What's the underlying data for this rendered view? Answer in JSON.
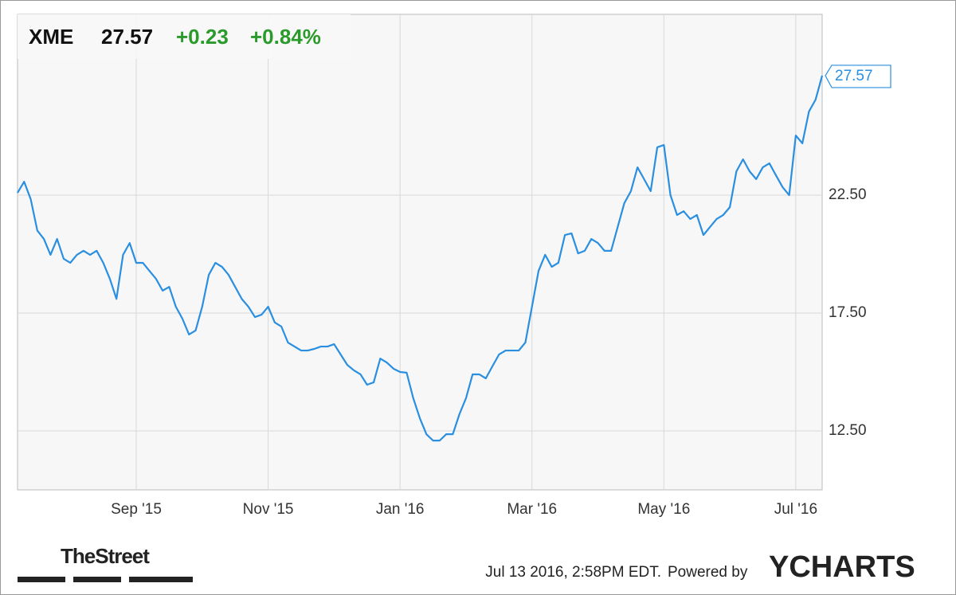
{
  "chart_data": {
    "type": "line",
    "header": {
      "symbol": "XME",
      "price": "27.57",
      "change": "+0.23",
      "change_percent": "+0.84%"
    },
    "categories": [
      null,
      null,
      null,
      null,
      null,
      null,
      null,
      null,
      null,
      null,
      null,
      null,
      null,
      null,
      null,
      null,
      null,
      null,
      "Sep '15",
      null,
      null,
      null,
      null,
      null,
      null,
      null,
      null,
      null,
      null,
      null,
      null,
      null,
      null,
      null,
      null,
      null,
      null,
      null,
      "Nov '15",
      null,
      null,
      null,
      null,
      null,
      null,
      null,
      null,
      null,
      null,
      null,
      null,
      null,
      null,
      null,
      null,
      null,
      null,
      null,
      "Jan '16",
      null,
      null,
      null,
      null,
      null,
      null,
      null,
      null,
      null,
      null,
      null,
      null,
      null,
      null,
      null,
      null,
      null,
      null,
      null,
      "Mar '16",
      null,
      null,
      null,
      null,
      null,
      null,
      null,
      null,
      null,
      null,
      null,
      null,
      null,
      null,
      null,
      null,
      null,
      null,
      null,
      "May '16",
      null,
      null,
      null,
      null,
      null,
      null,
      null,
      null,
      null,
      null,
      null,
      null,
      null,
      null,
      null,
      null,
      null,
      null,
      null,
      "Jul '16",
      null,
      null,
      null,
      null
    ],
    "series": [
      {
        "name": "XME",
        "color": "#2a8fe0",
        "values": [
          22.6,
          23.07,
          22.33,
          21.0,
          20.64,
          19.97,
          20.64,
          19.8,
          19.63,
          19.97,
          20.14,
          19.97,
          20.14,
          19.63,
          18.95,
          18.1,
          19.97,
          20.47,
          19.63,
          19.63,
          19.29,
          18.95,
          18.45,
          18.61,
          17.77,
          17.26,
          16.59,
          16.76,
          17.77,
          19.12,
          19.63,
          19.46,
          19.12,
          18.61,
          18.1,
          17.77,
          17.33,
          17.43,
          17.77,
          17.1,
          16.93,
          16.25,
          16.08,
          15.91,
          15.91,
          15.98,
          16.08,
          16.08,
          16.18,
          15.74,
          15.3,
          15.07,
          14.9,
          14.46,
          14.56,
          15.57,
          15.4,
          15.14,
          15.0,
          14.97,
          13.89,
          13.04,
          12.36,
          12.09,
          12.09,
          12.36,
          12.36,
          13.21,
          13.89,
          14.9,
          14.9,
          14.73,
          15.24,
          15.74,
          15.91,
          15.91,
          15.91,
          16.25,
          17.77,
          19.29,
          19.97,
          19.46,
          19.63,
          20.81,
          20.88,
          20.03,
          20.14,
          20.64,
          20.47,
          20.14,
          20.14,
          21.15,
          22.16,
          22.67,
          23.68,
          23.18,
          22.67,
          24.53,
          24.63,
          22.5,
          21.66,
          21.82,
          21.49,
          21.66,
          20.81,
          21.15,
          21.49,
          21.66,
          21.99,
          23.51,
          24.02,
          23.51,
          23.18,
          23.68,
          23.85,
          23.34,
          22.84,
          22.5,
          25.03,
          24.7,
          26.05,
          26.55,
          27.57
        ]
      }
    ],
    "ylim": [
      10,
      30.17
    ],
    "yticks": [
      {
        "value": 12.5,
        "label": "12.50"
      },
      {
        "value": 17.5,
        "label": "17.50"
      },
      {
        "value": 22.5,
        "label": "22.50"
      }
    ],
    "grid": true,
    "footer": {
      "brand": "TheStreet",
      "timestamp": "Jul 13 2016, 2:58PM EDT.",
      "powered_by": "Powered by",
      "provider": "YCHARTS"
    }
  }
}
